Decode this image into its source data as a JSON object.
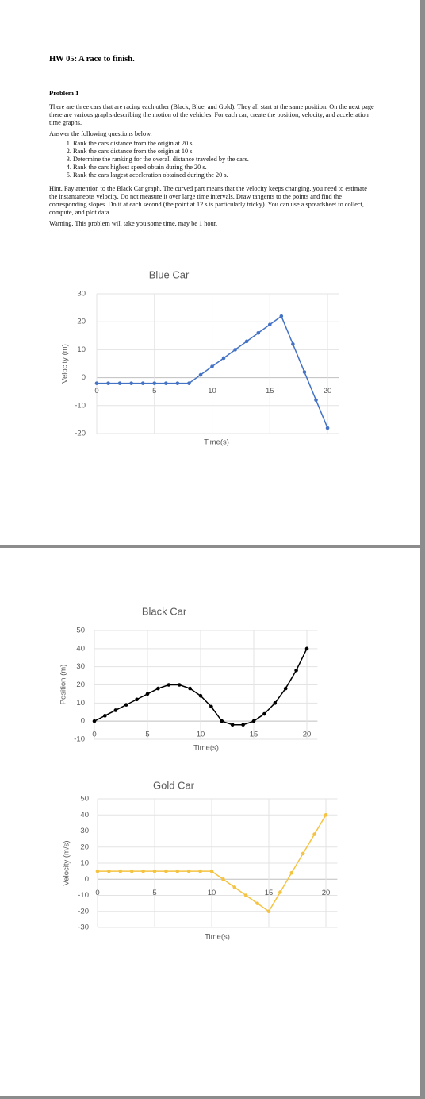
{
  "document": {
    "title": "HW 05: A race to finish.",
    "problem": "Problem 1",
    "intro": "There are three cars that are racing each other (Black, Blue, and Gold). They all start at the same position. On the next page there are various graphs describing the motion of the vehicles. For each car, create the position, velocity, and acceleration time graphs.",
    "prompt": "Answer the following questions below.",
    "questions": [
      "Rank the cars distance from the origin at 20 s.",
      "Rank the cars distance from the origin at 10 s.",
      "Determine the ranking for the overall distance traveled by the cars.",
      "Rank the cars highest speed obtain during the 20 s.",
      "Rank the cars largest acceleration obtained during the 20 s."
    ],
    "hint": "Hint. Pay attention to the Black Car graph. The curved part means that the velocity keeps changing, you need to estimate the instantaneous velocity. Do not measure it over large time intervals. Draw tangents to the points and find the corresponding slopes. Do it at each second (the point at 12 s is particularly tricky). You can use a spreadsheet to collect, compute, and plot data.",
    "warning": "Warning. This problem will take you some time, may be 1 hour."
  },
  "chart_data": [
    {
      "type": "line",
      "title": "Blue Car",
      "x_label": "Time(s)",
      "y_label": "Velocity (m)",
      "x": [
        0,
        1,
        2,
        3,
        4,
        5,
        6,
        7,
        8,
        9,
        10,
        11,
        12,
        13,
        14,
        15,
        16,
        17,
        18,
        19,
        20
      ],
      "series": [
        {
          "name": "Blue Car",
          "color": "#4472c4",
          "values": [
            -2,
            -2,
            -2,
            -2,
            -2,
            -2,
            -2,
            -2,
            -2,
            1,
            4,
            7,
            10,
            13,
            16,
            19,
            22,
            12,
            2,
            -8,
            -18
          ]
        }
      ],
      "xlim": [
        0,
        21
      ],
      "xticks": [
        0,
        5,
        10,
        15,
        20
      ],
      "ylim": [
        -20,
        30
      ],
      "yticks": [
        -20,
        -10,
        0,
        10,
        20,
        30
      ],
      "grid": true
    },
    {
      "type": "line",
      "title": "Black Car",
      "x_label": "Time(s)",
      "y_label": "Position (m)",
      "x": [
        0,
        1,
        2,
        3,
        4,
        5,
        6,
        7,
        8,
        9,
        10,
        11,
        12,
        13,
        14,
        15,
        16,
        17,
        18,
        19,
        20
      ],
      "series": [
        {
          "name": "Black Car",
          "color": "#000000",
          "values": [
            0,
            3,
            6,
            9,
            12,
            15,
            18,
            20,
            20,
            18,
            14,
            8,
            0,
            -2,
            -2,
            0,
            4,
            10,
            18,
            28,
            40
          ]
        }
      ],
      "xlim": [
        0,
        21
      ],
      "xticks": [
        0,
        5,
        10,
        15,
        20
      ],
      "ylim": [
        -10,
        50
      ],
      "yticks": [
        -10,
        0,
        10,
        20,
        30,
        40,
        50
      ],
      "grid": true
    },
    {
      "type": "line",
      "title": "Gold Car",
      "x_label": "Time(s)",
      "y_label": "Velocity (m/s)",
      "x": [
        0,
        1,
        2,
        3,
        4,
        5,
        6,
        7,
        8,
        9,
        10,
        11,
        12,
        13,
        14,
        15,
        16,
        17,
        18,
        19,
        20
      ],
      "series": [
        {
          "name": "Gold Car",
          "color": "#f5c342",
          "values": [
            5,
            5,
            5,
            5,
            5,
            5,
            5,
            5,
            5,
            5,
            5,
            0,
            -5,
            -10,
            -15,
            -20,
            -8,
            4,
            16,
            28,
            40
          ]
        }
      ],
      "xlim": [
        0,
        21
      ],
      "xticks": [
        0,
        5,
        10,
        15,
        20
      ],
      "ylim": [
        -30,
        50
      ],
      "yticks": [
        -30,
        -20,
        -10,
        0,
        10,
        20,
        30,
        40,
        50
      ],
      "grid": true
    }
  ]
}
